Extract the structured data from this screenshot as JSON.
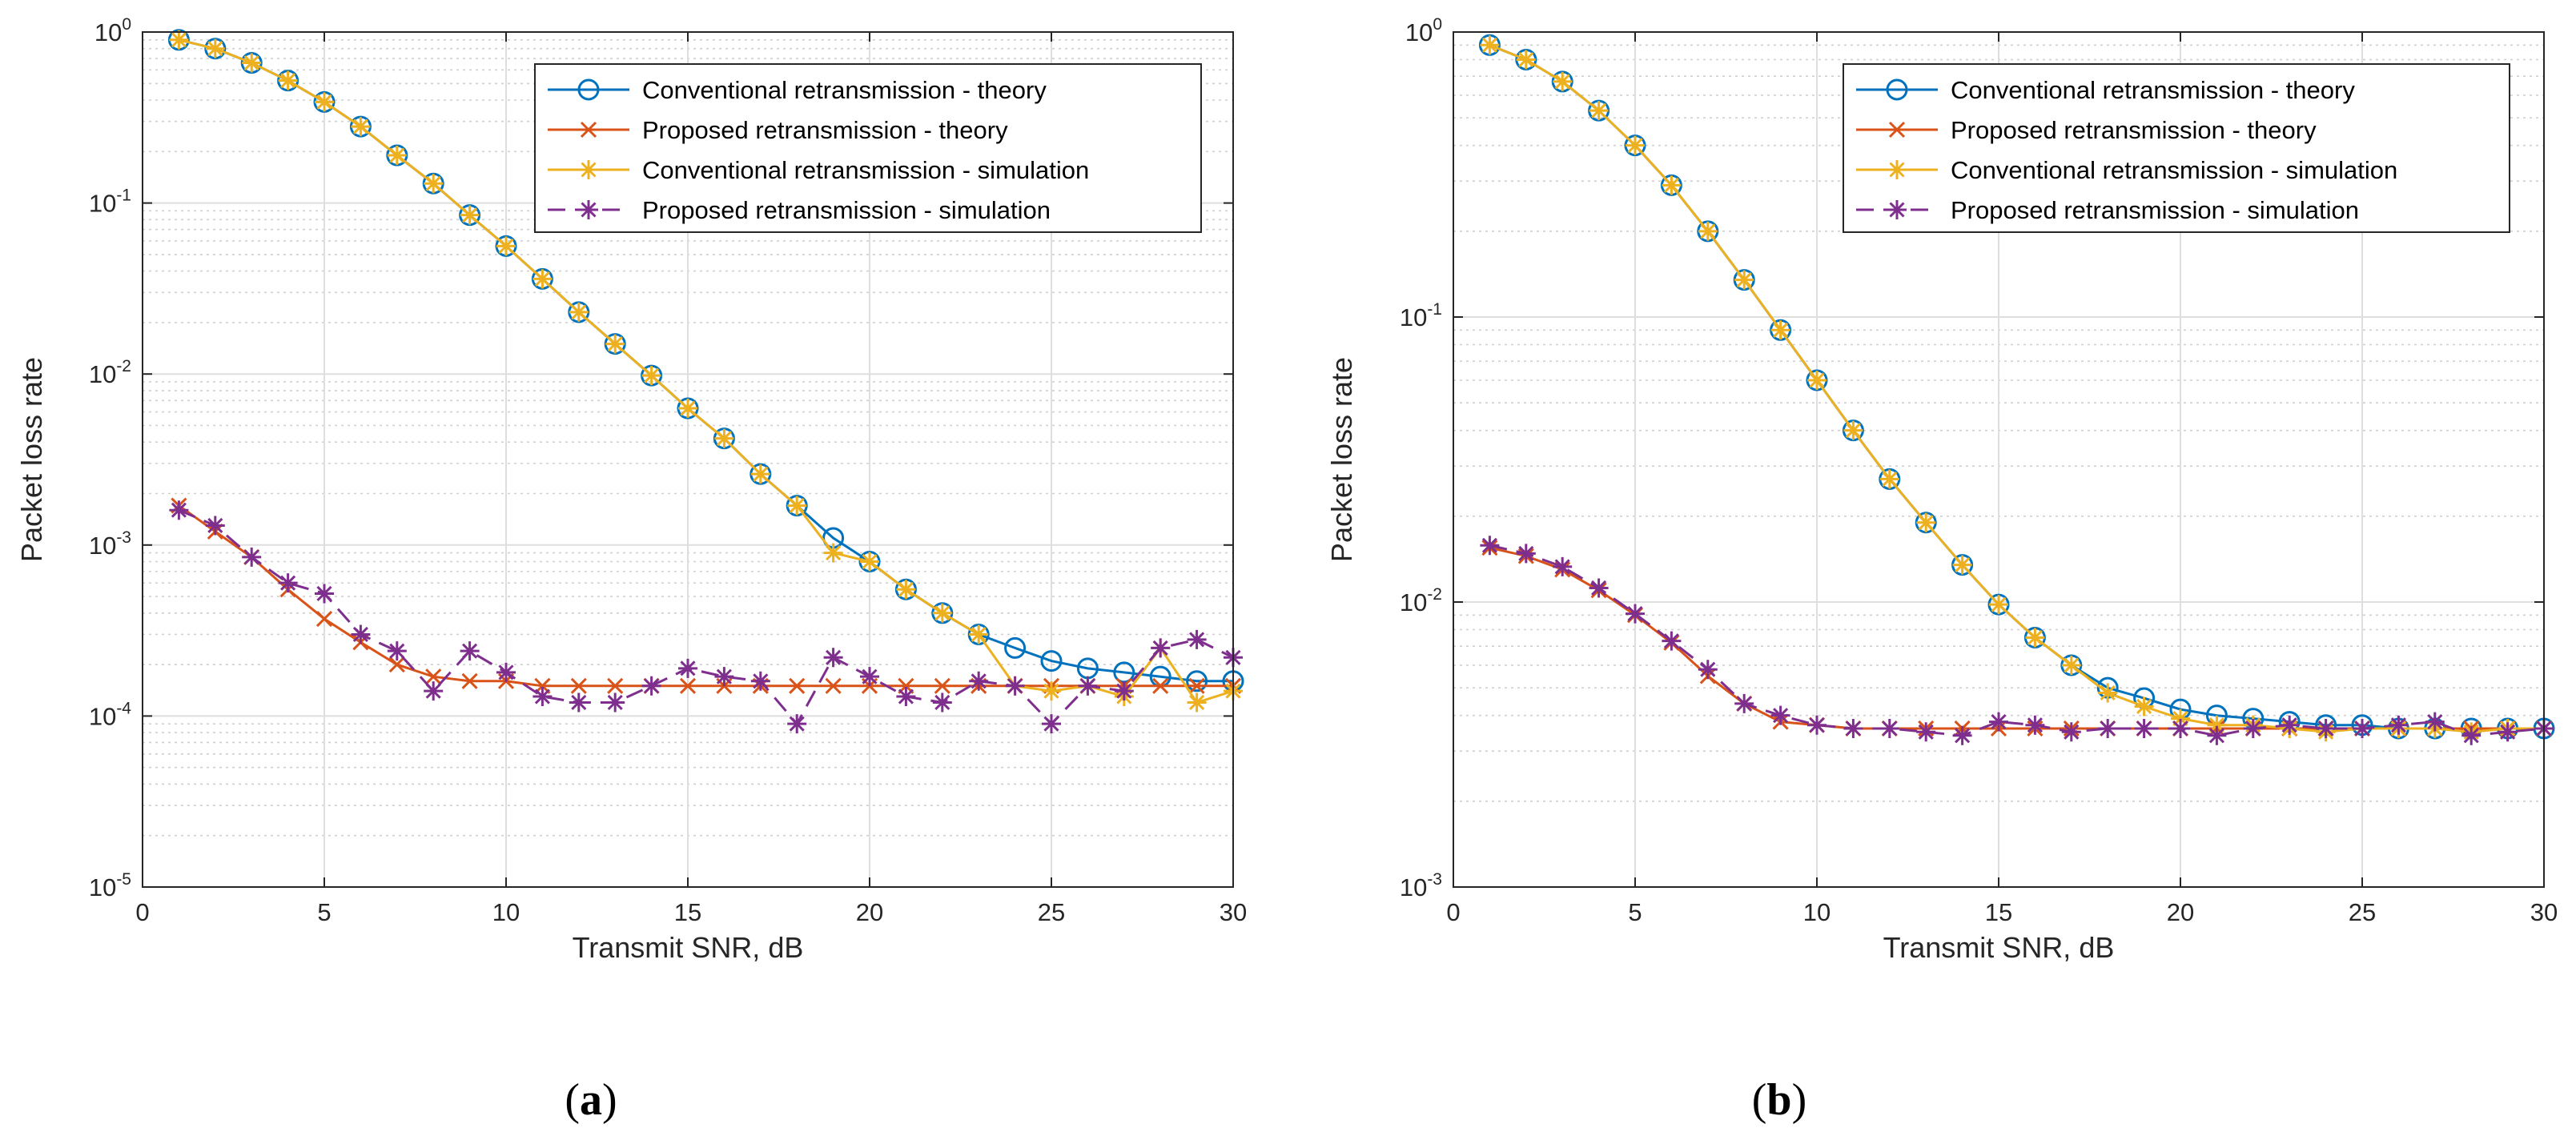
{
  "chart_data": [
    {
      "type": "line",
      "panel_label": "(a)",
      "xlabel": "Transmit SNR, dB",
      "ylabel": "Packet loss rate",
      "xlim": [
        0,
        30
      ],
      "ylim": [
        1e-05,
        1
      ],
      "yscale": "log",
      "grid": true,
      "legend_location": "top-right",
      "x_ticks": [
        "0",
        "5",
        "10",
        "15",
        "20",
        "25",
        "30"
      ],
      "y_ticks": [
        {
          "base": "10",
          "exp": "-5"
        },
        {
          "base": "10",
          "exp": "-4"
        },
        {
          "base": "10",
          "exp": "-3"
        },
        {
          "base": "10",
          "exp": "-2"
        },
        {
          "base": "10",
          "exp": "-1"
        },
        {
          "base": "10",
          "exp": "0"
        }
      ],
      "x": [
        1,
        2,
        3,
        4,
        5,
        6,
        7,
        8,
        9,
        10,
        11,
        12,
        13,
        14,
        15,
        16,
        17,
        18,
        19,
        20,
        21,
        22,
        23,
        24,
        25,
        26,
        27,
        28,
        29,
        30
      ],
      "series": [
        {
          "name": "Conventional retransmission - theory",
          "color": "#0072BD",
          "marker": "circle",
          "dashed": false,
          "values": [
            0.9,
            0.8,
            0.66,
            0.52,
            0.39,
            0.28,
            0.19,
            0.13,
            0.085,
            0.056,
            0.036,
            0.023,
            0.015,
            0.0098,
            0.0063,
            0.0042,
            0.0026,
            0.0017,
            0.0011,
            0.0008,
            0.00055,
            0.0004,
            0.0003,
            0.00025,
            0.00021,
            0.00019,
            0.00018,
            0.00017,
            0.00016,
            0.00016
          ]
        },
        {
          "name": "Proposed retransmission - theory",
          "color": "#D95319",
          "marker": "x",
          "dashed": false,
          "values": [
            0.0017,
            0.0012,
            0.00085,
            0.00055,
            0.00037,
            0.00027,
            0.0002,
            0.00017,
            0.00016,
            0.00016,
            0.00015,
            0.00015,
            0.00015,
            0.00015,
            0.00015,
            0.00015,
            0.00015,
            0.00015,
            0.00015,
            0.00015,
            0.00015,
            0.00015,
            0.00015,
            0.00015,
            0.00015,
            0.00015,
            0.00015,
            0.00015,
            0.00015,
            0.00015
          ]
        },
        {
          "name": "Conventional retransmission - simulation",
          "color": "#EDB120",
          "marker": "asterisk",
          "dashed": false,
          "values": [
            0.9,
            0.8,
            0.66,
            0.52,
            0.39,
            0.28,
            0.19,
            0.13,
            0.085,
            0.056,
            0.036,
            0.023,
            0.015,
            0.0098,
            0.0063,
            0.0042,
            0.0026,
            0.0017,
            0.0009,
            0.0008,
            0.00055,
            0.0004,
            0.0003,
            0.00015,
            0.00014,
            0.00015,
            0.00013,
            0.00025,
            0.00012,
            0.00014
          ]
        },
        {
          "name": "Proposed retransmission - simulation",
          "color": "#7E2F8E",
          "marker": "asterisk",
          "dashed": true,
          "values": [
            0.0016,
            0.0013,
            0.00085,
            0.0006,
            0.00052,
            0.0003,
            0.00024,
            0.00014,
            0.00024,
            0.00018,
            0.00013,
            0.00012,
            0.00012,
            0.00015,
            0.00019,
            0.00017,
            0.00016,
            9e-05,
            0.00022,
            0.00017,
            0.00013,
            0.00012,
            0.00016,
            0.00015,
            9e-05,
            0.00015,
            0.00014,
            0.00025,
            0.00028,
            0.00022
          ]
        }
      ]
    },
    {
      "type": "line",
      "panel_label": "(b)",
      "xlabel": "Transmit SNR, dB",
      "ylabel": "Packet loss rate",
      "xlim": [
        0,
        30
      ],
      "ylim": [
        0.001,
        1
      ],
      "yscale": "log",
      "grid": true,
      "legend_location": "top-right",
      "x_ticks": [
        "0",
        "5",
        "10",
        "15",
        "20",
        "25",
        "30"
      ],
      "y_ticks": [
        {
          "base": "10",
          "exp": "-3"
        },
        {
          "base": "10",
          "exp": "-2"
        },
        {
          "base": "10",
          "exp": "-1"
        },
        {
          "base": "10",
          "exp": "0"
        }
      ],
      "x": [
        1,
        2,
        3,
        4,
        5,
        6,
        7,
        8,
        9,
        10,
        11,
        12,
        13,
        14,
        15,
        16,
        17,
        18,
        19,
        20,
        21,
        22,
        23,
        24,
        25,
        26,
        27,
        28,
        29,
        30
      ],
      "series": [
        {
          "name": "Conventional retransmission - theory",
          "color": "#0072BD",
          "marker": "circle",
          "dashed": false,
          "values": [
            0.9,
            0.8,
            0.67,
            0.53,
            0.4,
            0.29,
            0.2,
            0.135,
            0.09,
            0.06,
            0.04,
            0.027,
            0.019,
            0.0135,
            0.0098,
            0.0075,
            0.006,
            0.005,
            0.0046,
            0.0042,
            0.004,
            0.0039,
            0.0038,
            0.0037,
            0.0037,
            0.0036,
            0.0036,
            0.0036,
            0.0036,
            0.0036
          ]
        },
        {
          "name": "Proposed retransmission - theory",
          "color": "#D95319",
          "marker": "x",
          "dashed": false,
          "values": [
            0.0155,
            0.0145,
            0.013,
            0.011,
            0.009,
            0.0072,
            0.0055,
            0.0044,
            0.0038,
            0.0037,
            0.0036,
            0.0036,
            0.0036,
            0.0036,
            0.0036,
            0.0036,
            0.0036,
            0.0036,
            0.0036,
            0.0036,
            0.0036,
            0.0036,
            0.0036,
            0.0036,
            0.0036,
            0.0036,
            0.0036,
            0.0036,
            0.0036,
            0.0036
          ]
        },
        {
          "name": "Conventional retransmission - simulation",
          "color": "#EDB120",
          "marker": "asterisk",
          "dashed": false,
          "values": [
            0.9,
            0.8,
            0.67,
            0.53,
            0.4,
            0.29,
            0.2,
            0.135,
            0.09,
            0.06,
            0.04,
            0.027,
            0.019,
            0.0135,
            0.0098,
            0.0075,
            0.006,
            0.0048,
            0.0043,
            0.0039,
            0.0037,
            0.0037,
            0.0036,
            0.0035,
            0.0036,
            0.0036,
            0.0036,
            0.0035,
            0.0036,
            0.0036
          ]
        },
        {
          "name": "Proposed retransmission - simulation",
          "color": "#7E2F8E",
          "marker": "asterisk",
          "dashed": true,
          "values": [
            0.0158,
            0.0148,
            0.0133,
            0.0112,
            0.0091,
            0.0073,
            0.0058,
            0.0044,
            0.004,
            0.0037,
            0.0036,
            0.0036,
            0.0035,
            0.0034,
            0.0038,
            0.0037,
            0.0035,
            0.0036,
            0.0036,
            0.0036,
            0.0034,
            0.0036,
            0.0037,
            0.0036,
            0.0036,
            0.0037,
            0.0038,
            0.0034,
            0.0035,
            0.0036
          ]
        }
      ]
    }
  ]
}
